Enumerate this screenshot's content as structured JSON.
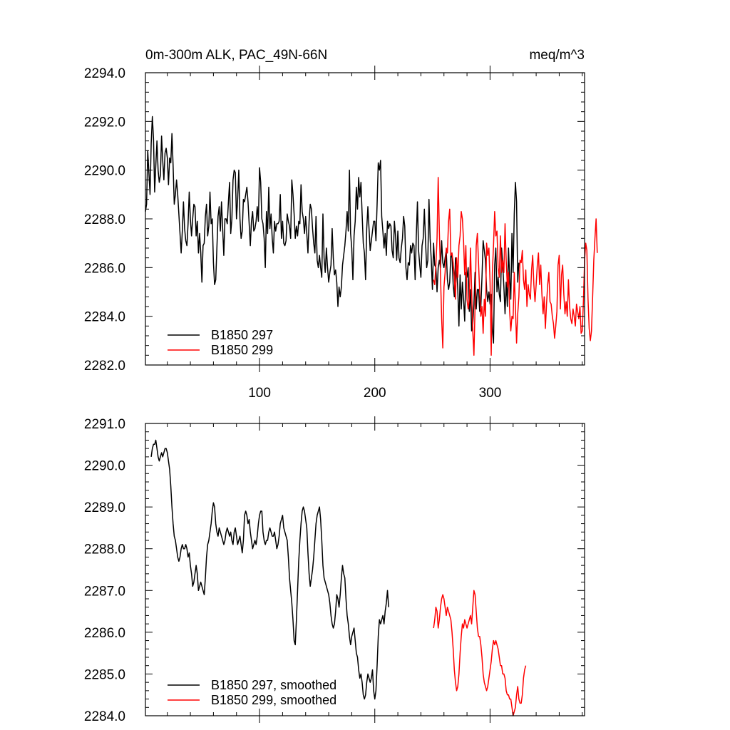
{
  "chart_data": [
    {
      "type": "line",
      "title_left": "0m-300m ALK, PAC_49N-66N",
      "title_right": "meq/m^3",
      "xlim": [
        1,
        382
      ],
      "ylim": [
        2282.0,
        2294.0
      ],
      "xticks": [
        100,
        200,
        300
      ],
      "xtick_labels": [
        "100",
        "200",
        "300"
      ],
      "yticks": [
        2282.0,
        2284.0,
        2286.0,
        2288.0,
        2290.0,
        2292.0,
        2294.0
      ],
      "ytick_labels": [
        "2282.0",
        "2284.0",
        "2286.0",
        "2288.0",
        "2290.0",
        "2292.0",
        "2294.0"
      ],
      "legend_position": "bottom-left",
      "series": [
        {
          "name": "B1850 297",
          "color": "#000000",
          "x_start": 1,
          "values": [
            2288.3,
            2288.6,
            2290.8,
            2289.9,
            2289.0,
            2291.1,
            2292.2,
            2291.3,
            2289.1,
            2290.2,
            2291.2,
            2290.0,
            2289.5,
            2289.8,
            2291.4,
            2290.4,
            2289.6,
            2290.7,
            2290.9,
            2290.5,
            2289.4,
            2290.5,
            2290.3,
            2291.5,
            2290.2,
            2288.6,
            2289.0,
            2289.6,
            2289.0,
            2288.2,
            2287.4,
            2286.6,
            2287.5,
            2288.7,
            2287.6,
            2287.1,
            2286.9,
            2287.8,
            2289.1,
            2288.0,
            2287.3,
            2288.0,
            2288.6,
            2288.5,
            2287.3,
            2287.9,
            2286.6,
            2287.4,
            2286.6,
            2285.4,
            2286.9,
            2287.0,
            2288.1,
            2288.6,
            2287.3,
            2287.7,
            2289.1,
            2287.8,
            2288.0,
            2286.2,
            2285.3,
            2285.5,
            2286.8,
            2288.1,
            2288.5,
            2287.5,
            2288.7,
            2287.6,
            2286.5,
            2288.0,
            2288.0,
            2287.8,
            2288.7,
            2289.5,
            2287.4,
            2288.0,
            2289.6,
            2290.0,
            2289.9,
            2288.0,
            2288.8,
            2290.0,
            2288.0,
            2287.2,
            2287.5,
            2288.8,
            2288.7,
            2289.0,
            2289.3,
            2288.7,
            2287.8,
            2286.9,
            2287.9,
            2288.3,
            2287.5,
            2287.6,
            2287.9,
            2288.5,
            2287.9,
            2290.1,
            2289.5,
            2288.0,
            2287.8,
            2287.2,
            2286.0,
            2288.3,
            2287.4,
            2289.3,
            2287.6,
            2288.2,
            2287.2,
            2286.6,
            2287.9,
            2287.5,
            2287.8,
            2287.8,
            2287.9,
            2289.0,
            2287.2,
            2287.9,
            2287.0,
            2286.9,
            2287.1,
            2288.2,
            2287.9,
            2287.7,
            2287.2,
            2289.6,
            2289.0,
            2288.2,
            2287.2,
            2287.7,
            2287.3,
            2287.9,
            2287.8,
            2289.4,
            2288.3,
            2288.0,
            2287.4,
            2288.1,
            2287.4,
            2286.6,
            2287.9,
            2288.6,
            2288.4,
            2287.6,
            2287.0,
            2286.6,
            2288.1,
            2286.3,
            2286.0,
            2286.5,
            2286.0,
            2285.6,
            2288.2,
            2286.4,
            2285.8,
            2286.8,
            2286.0,
            2285.4,
            2285.8,
            2286.1,
            2287.6,
            2286.4,
            2285.7,
            2285.9,
            2285.4,
            2284.4,
            2285.2,
            2284.8,
            2285.2,
            2286.1,
            2286.5,
            2286.9,
            2287.5,
            2288.3,
            2287.5,
            2290.0,
            2287.4,
            2286.8,
            2285.5,
            2287.3,
            2287.9,
            2289.3,
            2288.4,
            2289.7,
            2288.9,
            2289.5,
            2288.2,
            2287.0,
            2286.6,
            2285.5,
            2287.6,
            2288.5,
            2287.6,
            2286.7,
            2287.1,
            2287.5,
            2287.9,
            2287.9,
            2287.1,
            2288.6,
            2290.3,
            2290.0,
            2290.4,
            2288.1,
            2287.5,
            2286.8,
            2287.4,
            2286.5,
            2287.9,
            2287.6,
            2287.8,
            2287.7,
            2286.7,
            2286.4,
            2287.9,
            2287.3,
            2286.3,
            2287.5,
            2286.4,
            2286.2,
            2286.8,
            2287.2,
            2288.1,
            2287.7,
            2286.0,
            2285.5,
            2286.2,
            2286.1,
            2286.9,
            2286.6,
            2287.0,
            2286.9,
            2285.5,
            2287.3,
            2288.7,
            2286.7,
            2286.1,
            2285.6,
            2286.9,
            2287.2,
            2288.4,
            2287.1,
            2286.0,
            2286.3,
            2288.8,
            2287.2,
            2286.3,
            2285.1,
            2287.0,
            2286.1,
            2286.0,
            2285.0,
            2286.0,
            2286.3,
            2286.0,
            2287.1,
            2286.2,
            2286.0,
            2286.4,
            2286.7,
            2285.5,
            2285.1,
            2285.4,
            2286.6,
            2286.4,
            2285.3,
            2284.8,
            2286.4,
            2286.1,
            2285.1,
            2283.6,
            2285.7,
            2284.3,
            2285.4,
            2284.7,
            2283.8,
            2285.8,
            2285.6,
            2286.0,
            2284.2,
            2285.1,
            2283.4,
            2283.7,
            2284.5,
            2285.8,
            2284.3,
            2285.1,
            2285.1,
            2284.2,
            2284.4,
            2285.6,
            2287.1,
            2286.7,
            2286.3,
            2285.1,
            2284.6,
            2285.0,
            2284.5,
            2284.9,
            2283.5,
            2282.9,
            2286.1,
            2286.8,
            2285.0,
            2285.6,
            2284.9,
            2284.6,
            2286.8,
            2286.1,
            2285.2,
            2284.1,
            2285.4,
            2284.4,
            2286.8,
            2285.6,
            2284.7,
            2287.4,
            2285.8,
            2288.2,
            2289.5,
            2288.7,
            2285.4,
            2286.2
          ]
        },
        {
          "name": "B1850 299",
          "color": "#ff0000",
          "x_start": 251,
          "values": [
            2285.5,
            2285.3,
            2286.1,
            2287.2,
            2289.7,
            2287.5,
            2285.7,
            2283.9,
            2282.7,
            2285.2,
            2285.8,
            2286.8,
            2286.6,
            2287.9,
            2288.4,
            2286.5,
            2286.6,
            2286.2,
            2285.6,
            2284.7,
            2286.4,
            2285.6,
            2286.9,
            2287.3,
            2288.3,
            2288.0,
            2287.1,
            2285.7,
            2286.9,
            2284.7,
            2284.3,
            2284.7,
            2286.8,
            2285.1,
            2283.4,
            2282.4,
            2284.4,
            2286.9,
            2287.4,
            2286.2,
            2285.0,
            2284.0,
            2284.4,
            2283.3,
            2284.7,
            2284.0,
            2287.0,
            2286.5,
            2286.8,
            2285.4,
            2282.4,
            2285.8,
            2286.9,
            2288.3,
            2287.3,
            2287.5,
            2286.0,
            2285.6,
            2287.3,
            2285.8,
            2286.3,
            2285.8,
            2287.8,
            2286.3,
            2285.2,
            2285.8,
            2284.2,
            2283.4,
            2284.0,
            2283.9,
            2285.8,
            2284.4,
            2282.9,
            2284.1,
            2284.8,
            2286.3,
            2286.2,
            2286.7,
            2285.5,
            2285.1,
            2285.9,
            2284.4,
            2285.3,
            2284.9,
            2284.7,
            2285.9,
            2286.5,
            2285.3,
            2284.6,
            2285.3,
            2286.1,
            2286.6,
            2285.3,
            2286.1,
            2284.9,
            2284.1,
            2284.8,
            2283.5,
            2284.5,
            2285.3,
            2285.8,
            2284.6,
            2284.5,
            2284.0,
            2283.7,
            2283.1,
            2283.6,
            2284.2,
            2286.1,
            2286.5,
            2284.3,
            2285.7,
            2286.1,
            2284.9,
            2284.1,
            2284.6,
            2284.0,
            2285.5,
            2284.4,
            2283.9,
            2283.7,
            2284.3,
            2284.0,
            2283.6,
            2284.5,
            2284.2,
            2283.9,
            2284.4,
            2283.3,
            2283.4,
            2284.6,
            2286.3,
            2287.0,
            2286.7,
            2284.7,
            2283.5,
            2283.0,
            2283.4,
            2284.8,
            2286.3,
            2287.2,
            2288.0,
            2286.6
          ]
        }
      ]
    },
    {
      "type": "line",
      "xlim": [
        1,
        382
      ],
      "ylim": [
        2284.0,
        2291.0
      ],
      "xticks": [
        100,
        200,
        300
      ],
      "yticks": [
        2284.0,
        2285.0,
        2286.0,
        2287.0,
        2288.0,
        2289.0,
        2290.0,
        2291.0
      ],
      "ytick_labels": [
        "2284.0",
        "2285.0",
        "2286.0",
        "2287.0",
        "2288.0",
        "2289.0",
        "2290.0",
        "2291.0"
      ],
      "legend_position": "bottom-left",
      "series": [
        {
          "name": "B1850 297, smoothed",
          "color": "#000000",
          "x_start": 6,
          "values": [
            2290.2,
            2290.4,
            2290.5,
            2290.5,
            2290.6,
            2290.4,
            2290.2,
            2290.1,
            2290.2,
            2290.3,
            2290.2,
            2290.3,
            2290.4,
            2290.4,
            2290.3,
            2290.1,
            2289.9,
            2289.5,
            2289.0,
            2288.6,
            2288.3,
            2288.2,
            2288.0,
            2287.8,
            2287.7,
            2287.8,
            2288.0,
            2288.1,
            2288.0,
            2288.0,
            2288.1,
            2288.0,
            2287.8,
            2287.9,
            2287.6,
            2287.4,
            2287.1,
            2287.2,
            2287.4,
            2287.6,
            2287.4,
            2287.0,
            2287.1,
            2287.2,
            2287.1,
            2287.0,
            2286.9,
            2287.3,
            2287.8,
            2288.1,
            2288.2,
            2288.4,
            2288.6,
            2288.9,
            2289.1,
            2289.0,
            2288.6,
            2288.4,
            2288.3,
            2288.5,
            2288.4,
            2288.3,
            2288.2,
            2288.1,
            2288.2,
            2288.4,
            2288.5,
            2288.4,
            2288.3,
            2288.4,
            2288.2,
            2288.1,
            2288.4,
            2288.5,
            2288.3,
            2288.1,
            2288.2,
            2288.3,
            2288.1,
            2287.9,
            2288.2,
            2288.8,
            2288.9,
            2288.8,
            2288.6,
            2288.7,
            2288.4,
            2288.2,
            2288.0,
            2288.1,
            2288.2,
            2288.1,
            2288.3,
            2288.6,
            2288.8,
            2288.9,
            2288.9,
            2288.4,
            2288.2,
            2288.1,
            2288.2,
            2288.2,
            2288.4,
            2288.5,
            2288.4,
            2288.3,
            2288.3,
            2288.4,
            2288.2,
            2288.0,
            2288.1,
            2288.3,
            2288.6,
            2288.7,
            2288.8,
            2288.5,
            2288.4,
            2288.3,
            2288.2,
            2287.8,
            2287.3,
            2287.0,
            2286.7,
            2286.3,
            2285.8,
            2285.7,
            2286.3,
            2287.0,
            2287.7,
            2288.2,
            2288.6,
            2288.9,
            2289.0,
            2288.9,
            2288.7,
            2288.5,
            2287.9,
            2287.4,
            2287.1,
            2287.3,
            2287.5,
            2287.8,
            2288.2,
            2288.6,
            2288.8,
            2288.9,
            2289.0,
            2288.7,
            2288.2,
            2287.6,
            2287.3,
            2287.2,
            2287.1,
            2287.0,
            2286.9,
            2286.7,
            2286.4,
            2286.2,
            2286.1,
            2286.2,
            2286.5,
            2286.9,
            2286.8,
            2286.6,
            2286.9,
            2287.3,
            2287.6,
            2287.4,
            2287.3,
            2286.8,
            2286.4,
            2286.2,
            2285.9,
            2285.7,
            2285.9,
            2286.0,
            2286.1,
            2285.8,
            2285.5,
            2285.4,
            2285.1,
            2284.9,
            2285.0,
            2284.8,
            2284.5,
            2284.4,
            2284.5,
            2284.8,
            2285.0,
            2284.9,
            2284.8,
            2284.9,
            2285.1,
            2284.6,
            2284.4,
            2284.6,
            2285.2,
            2285.9,
            2286.3,
            2286.2,
            2286.3,
            2286.4,
            2286.2,
            2286.5,
            2286.7,
            2287.0,
            2286.6
          ]
        },
        {
          "name": "B1850 299, smoothed",
          "color": "#ff0000",
          "x_start": 251,
          "values": [
            2286.1,
            2286.3,
            2286.6,
            2286.5,
            2286.1,
            2286.3,
            2286.6,
            2286.8,
            2286.9,
            2286.8,
            2286.6,
            2286.4,
            2286.6,
            2286.5,
            2286.4,
            2286.3,
            2286.0,
            2285.6,
            2285.1,
            2284.8,
            2284.6,
            2284.7,
            2285.0,
            2285.5,
            2285.9,
            2286.2,
            2286.1,
            2286.3,
            2286.2,
            2286.1,
            2286.2,
            2286.3,
            2286.4,
            2286.2,
            2286.6,
            2287.0,
            2286.9,
            2286.5,
            2286.1,
            2285.9,
            2285.9,
            2285.7,
            2285.4,
            2285.0,
            2284.8,
            2284.7,
            2284.6,
            2284.7,
            2284.9,
            2285.1,
            2285.3,
            2285.6,
            2285.8,
            2285.7,
            2285.8,
            2285.7,
            2285.6,
            2285.4,
            2285.2,
            2285.2,
            2285.0,
            2285.0,
            2284.9,
            2284.6,
            2284.5,
            2284.5,
            2284.4,
            2284.4,
            2284.2,
            2284.0,
            2284.1,
            2284.2,
            2284.5,
            2284.7,
            2284.4,
            2284.3,
            2284.3,
            2284.5,
            2284.9,
            2285.1,
            2285.2
          ]
        }
      ]
    }
  ]
}
